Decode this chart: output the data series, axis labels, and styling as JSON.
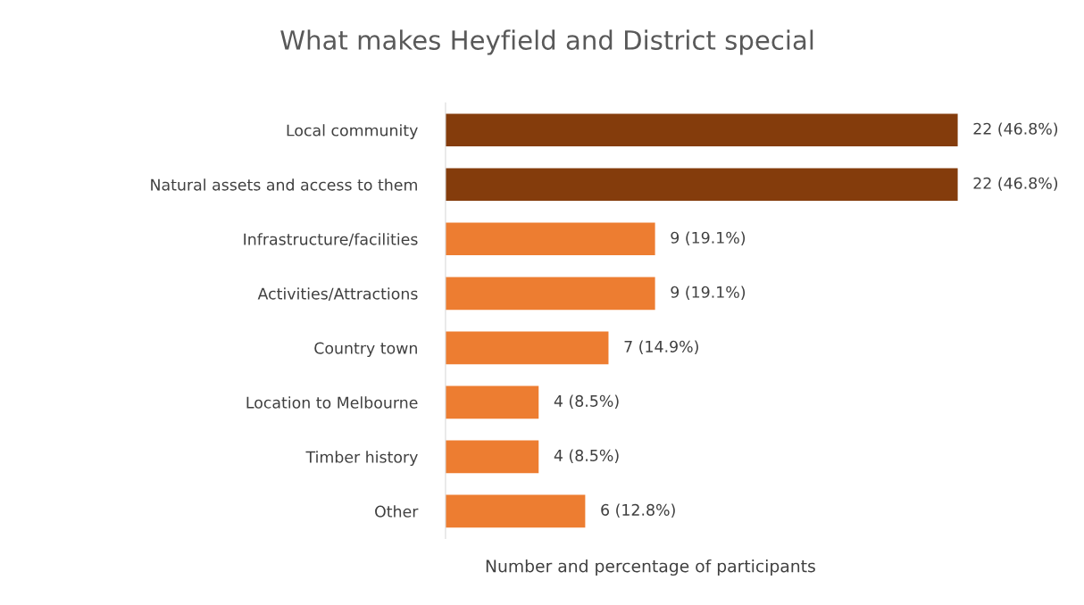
{
  "chart_data": {
    "type": "bar",
    "orientation": "horizontal",
    "title": "What makes Heyfield and District special",
    "xlabel": "Number and percentage of participants",
    "categories": [
      "Local community",
      "Natural assets and access to them",
      "Infrastructure/facilities",
      "Activities/Attractions",
      "Country town",
      "Location to Melbourne",
      "Timber history",
      "Other"
    ],
    "values": [
      22,
      22,
      9,
      9,
      7,
      4,
      4,
      6
    ],
    "colors": [
      "#843c0c",
      "#843c0c",
      "#ed7d31",
      "#ed7d31",
      "#ed7d31",
      "#ed7d31",
      "#ed7d31",
      "#ed7d31"
    ],
    "value_labels": [
      "22 (46.8%)",
      "22 (46.8%)",
      "9 (19.1%)",
      "9 (19.1%)",
      "7 (14.9%)",
      "4 (8.5%)",
      "4 (8.5%)",
      "6 (12.8%)"
    ],
    "tick_labels": "y",
    "grid": false,
    "legend": false
  }
}
